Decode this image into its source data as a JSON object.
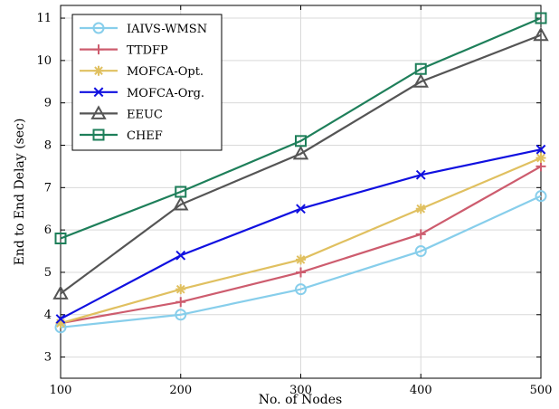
{
  "chart_data": {
    "type": "line",
    "title": "",
    "xlabel": "No. of Nodes",
    "ylabel": "End to End Delay (sec)",
    "x": [
      100,
      200,
      300,
      400,
      500
    ],
    "xticks": [
      "100",
      "200",
      "300",
      "400",
      "500"
    ],
    "yticks": [
      "3",
      "4",
      "5",
      "6",
      "7",
      "8",
      "9",
      "10",
      "11"
    ],
    "xlim": [
      100,
      500
    ],
    "ylim": [
      2.5,
      11.3
    ],
    "grid": true,
    "legend_position": "top-left",
    "series": [
      {
        "name": "IAIVS-WMSN",
        "values": [
          3.7,
          4.0,
          4.6,
          5.5,
          6.8
        ],
        "color": "#87CEEB",
        "marker": "circle"
      },
      {
        "name": "TTDFP",
        "values": [
          3.8,
          4.3,
          5.0,
          5.9,
          7.5
        ],
        "color": "#CD5C6E",
        "marker": "plus"
      },
      {
        "name": "MOFCA-Opt.",
        "values": [
          3.8,
          4.6,
          5.3,
          6.5,
          7.7
        ],
        "color": "#E0C060",
        "marker": "asterisk"
      },
      {
        "name": "MOFCA-Org.",
        "values": [
          3.9,
          5.4,
          6.5,
          7.3,
          7.9
        ],
        "color": "#1010E0",
        "marker": "x"
      },
      {
        "name": "EEUC",
        "values": [
          4.5,
          6.6,
          7.8,
          9.5,
          10.6
        ],
        "color": "#555555",
        "marker": "triangle"
      },
      {
        "name": "CHEF",
        "values": [
          5.8,
          6.9,
          8.1,
          9.8,
          11.0
        ],
        "color": "#1E7F5A",
        "marker": "square"
      }
    ]
  }
}
